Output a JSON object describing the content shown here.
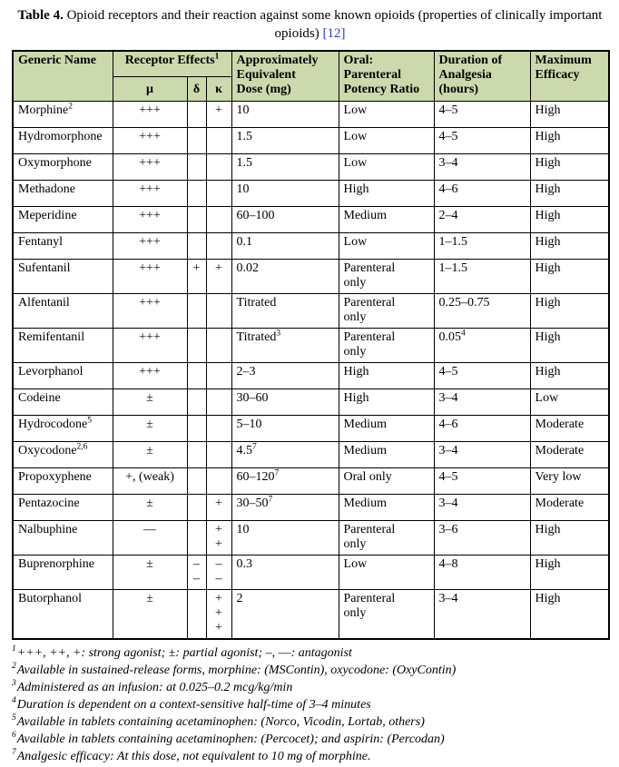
{
  "caption": {
    "label": "Table 4.",
    "text": "Opioid receptors and their reaction against some known opioids (properties of clinically important opioids)",
    "citation": "[12]"
  },
  "colors": {
    "header_bg": "#ccd9ad",
    "citation_blue": "#2b3cc7",
    "border": "#000000"
  },
  "table": {
    "headers": {
      "generic_name": "Generic Name",
      "receptor": {
        "t": "Receptor Effects",
        "s": "1"
      },
      "mu": "μ",
      "delta": "δ",
      "kappa": "κ",
      "dose": "Approximately\nEquivalent\nDose (mg)",
      "oral": "Oral:\nParenteral\nPotency Ratio",
      "duration": "Duration of\nAnalgesia\n(hours)",
      "efficacy": "Maximum\nEfficacy"
    },
    "columns": [
      "name",
      "mu",
      "delta",
      "kappa",
      "dose",
      "oral",
      "duration",
      "efficacy"
    ],
    "rows": [
      [
        {
          "t": "Morphine",
          "s": "2"
        },
        {
          "t": "+++"
        },
        {
          "t": ""
        },
        {
          "t": "+"
        },
        {
          "t": "10"
        },
        {
          "t": "Low"
        },
        {
          "t": "4–5"
        },
        {
          "t": "High"
        }
      ],
      [
        {
          "t": "Hydromorphone"
        },
        {
          "t": "+++"
        },
        {
          "t": ""
        },
        {
          "t": ""
        },
        {
          "t": "1.5"
        },
        {
          "t": "Low"
        },
        {
          "t": "4–5"
        },
        {
          "t": "High"
        }
      ],
      [
        {
          "t": "Oxymorphone"
        },
        {
          "t": "+++"
        },
        {
          "t": ""
        },
        {
          "t": ""
        },
        {
          "t": "1.5"
        },
        {
          "t": "Low"
        },
        {
          "t": "3–4"
        },
        {
          "t": "High"
        }
      ],
      [
        {
          "t": "Methadone"
        },
        {
          "t": "+++"
        },
        {
          "t": ""
        },
        {
          "t": ""
        },
        {
          "t": "10"
        },
        {
          "t": "High"
        },
        {
          "t": "4–6"
        },
        {
          "t": "High"
        }
      ],
      [
        {
          "t": "Meperidine"
        },
        {
          "t": "+++"
        },
        {
          "t": ""
        },
        {
          "t": ""
        },
        {
          "t": "60–100"
        },
        {
          "t": "Medium"
        },
        {
          "t": "2–4"
        },
        {
          "t": "High"
        }
      ],
      [
        {
          "t": "Fentanyl"
        },
        {
          "t": "+++"
        },
        {
          "t": ""
        },
        {
          "t": ""
        },
        {
          "t": "0.1"
        },
        {
          "t": "Low"
        },
        {
          "t": "1–1.5"
        },
        {
          "t": "High"
        }
      ],
      [
        {
          "t": "Sufentanil"
        },
        {
          "t": "+++"
        },
        {
          "t": "+"
        },
        {
          "t": "+"
        },
        {
          "t": "0.02"
        },
        {
          "t": "Parenteral\nonly"
        },
        {
          "t": "1–1.5"
        },
        {
          "t": "High"
        }
      ],
      [
        {
          "t": "Alfentanil"
        },
        {
          "t": "+++"
        },
        {
          "t": ""
        },
        {
          "t": ""
        },
        {
          "t": "Titrated"
        },
        {
          "t": "Parenteral\nonly"
        },
        {
          "t": "0.25–0.75"
        },
        {
          "t": "High"
        }
      ],
      [
        {
          "t": "Remifentanil"
        },
        {
          "t": "+++"
        },
        {
          "t": ""
        },
        {
          "t": ""
        },
        {
          "t": "Titrated",
          "s": "3"
        },
        {
          "t": "Parenteral\nonly"
        },
        {
          "t": "0.05",
          "s": "4"
        },
        {
          "t": "High"
        }
      ],
      [
        {
          "t": "Levorphanol"
        },
        {
          "t": "+++"
        },
        {
          "t": ""
        },
        {
          "t": ""
        },
        {
          "t": "2–3"
        },
        {
          "t": "High"
        },
        {
          "t": "4–5"
        },
        {
          "t": "High"
        }
      ],
      [
        {
          "t": "Codeine"
        },
        {
          "t": "±"
        },
        {
          "t": ""
        },
        {
          "t": ""
        },
        {
          "t": "30–60"
        },
        {
          "t": "High"
        },
        {
          "t": "3–4"
        },
        {
          "t": "Low"
        }
      ],
      [
        {
          "t": "Hydrocodone",
          "s": "5"
        },
        {
          "t": "±"
        },
        {
          "t": ""
        },
        {
          "t": ""
        },
        {
          "t": "5–10"
        },
        {
          "t": "Medium"
        },
        {
          "t": "4–6"
        },
        {
          "t": "Moderate"
        }
      ],
      [
        {
          "t": "Oxycodone",
          "s": "2,6"
        },
        {
          "t": "±"
        },
        {
          "t": ""
        },
        {
          "t": ""
        },
        {
          "t": "4.5",
          "s": "7"
        },
        {
          "t": "Medium"
        },
        {
          "t": "3–4"
        },
        {
          "t": "Moderate"
        }
      ],
      [
        {
          "t": "Propoxyphene"
        },
        {
          "t": "+, (weak)"
        },
        {
          "t": ""
        },
        {
          "t": ""
        },
        {
          "t": "60–120",
          "s": "7"
        },
        {
          "t": "Oral only"
        },
        {
          "t": "4–5"
        },
        {
          "t": "Very low"
        }
      ],
      [
        {
          "t": "Pentazocine"
        },
        {
          "t": "±"
        },
        {
          "t": ""
        },
        {
          "t": "+"
        },
        {
          "t": "30–50",
          "s": "7"
        },
        {
          "t": "Medium"
        },
        {
          "t": "3–4"
        },
        {
          "t": "Moderate"
        }
      ],
      [
        {
          "t": "Nalbuphine"
        },
        {
          "t": "––"
        },
        {
          "t": ""
        },
        {
          "t": "+\n+"
        },
        {
          "t": "10"
        },
        {
          "t": "Parenteral\nonly"
        },
        {
          "t": "3–6"
        },
        {
          "t": "High"
        }
      ],
      [
        {
          "t": "Buprenorphine"
        },
        {
          "t": "±"
        },
        {
          "t": "–\n–"
        },
        {
          "t": "–\n–"
        },
        {
          "t": "0.3"
        },
        {
          "t": "Low"
        },
        {
          "t": "4–8"
        },
        {
          "t": "High"
        }
      ],
      [
        {
          "t": "Butorphanol"
        },
        {
          "t": "±"
        },
        {
          "t": ""
        },
        {
          "t": "+\n+\n+"
        },
        {
          "t": "2"
        },
        {
          "t": "Parenteral\nonly"
        },
        {
          "t": "3–4"
        },
        {
          "t": "High"
        }
      ]
    ]
  },
  "footnotes": [
    {
      "s": "1",
      "t": "+++, ++, +: strong agonist; ±: partial agonist; –, ––: antagonist"
    },
    {
      "s": "2",
      "t": "Available in sustained-release forms, morphine: (MSContin), oxycodone: (OxyContin)"
    },
    {
      "s": "3",
      "t": "Administered as an infusion: at 0.025–0.2 mcg/kg/min"
    },
    {
      "s": "4",
      "t": "Duration is dependent on a context-sensitive half-time of 3–4 minutes"
    },
    {
      "s": "5",
      "t": "Available in tablets containing acetaminophen: (Norco, Vicodin, Lortab, others)"
    },
    {
      "s": "6",
      "t": "Available in tablets containing acetaminophen: (Percocet); and aspirin: (Percodan)"
    },
    {
      "s": "7",
      "t": "Analgesic efficacy: At this dose, not equivalent to 10 mg of morphine."
    }
  ]
}
